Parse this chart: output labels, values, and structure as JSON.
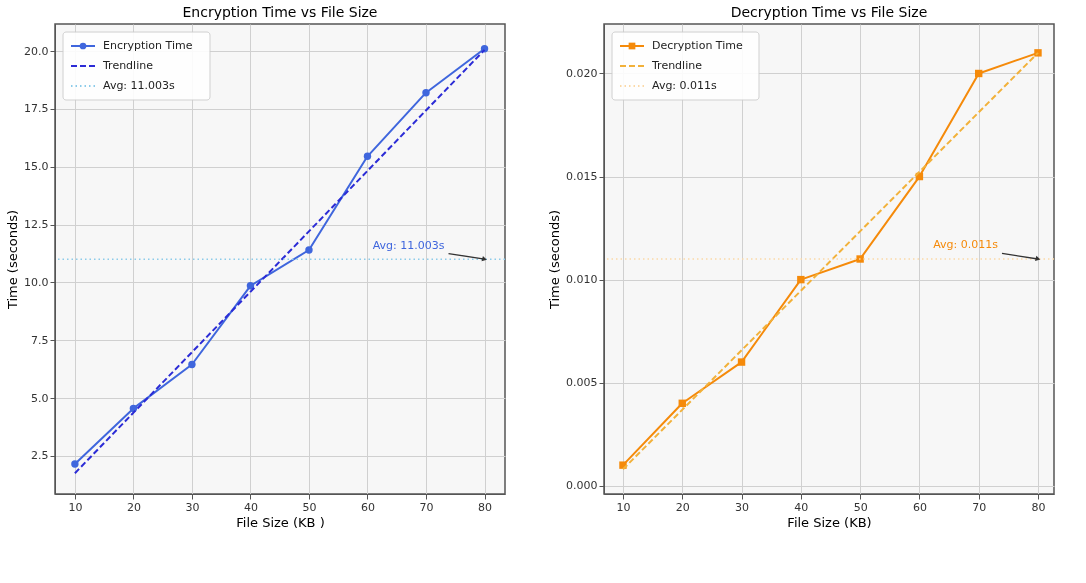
{
  "chart_data": [
    {
      "type": "line",
      "title": "Encryption Time vs File Size",
      "xlabel": "File Size (KB )",
      "ylabel": "Time (seconds)",
      "xlim": [
        6.6,
        83.5
      ],
      "ylim": [
        0.85,
        21.17
      ],
      "xticks": [
        10,
        20,
        30,
        40,
        50,
        60,
        70,
        80
      ],
      "yticks": [
        2.5,
        {
          "value": 5,
          "label": "5.0"
        },
        7.5,
        {
          "value": 10,
          "label": "10.0"
        },
        12.5,
        {
          "value": 15,
          "label": "15.0"
        },
        17.5,
        {
          "value": 20,
          "label": "20.0"
        }
      ],
      "grid": true,
      "legend": "top left",
      "series": [
        {
          "name": "Encryption Time",
          "color": "#3f66dd",
          "marker": "circle",
          "line_style": "solid",
          "x": [
            10,
            20,
            30,
            40,
            50,
            60,
            70,
            80
          ],
          "values": [
            2.15,
            4.55,
            6.45,
            9.85,
            11.4,
            15.45,
            18.2,
            20.1
          ]
        },
        {
          "name": "Trendline",
          "color": "#2b2bd6",
          "marker": "none",
          "line_style": "dashed",
          "x": [
            10,
            80
          ],
          "values": [
            1.75,
            20.05
          ]
        }
      ],
      "ref_lines": [
        {
          "axis": "y",
          "value": 11.003,
          "label": "Avg: 11.003s",
          "color": "#8ccbea",
          "line_style": "dotted"
        }
      ],
      "annotations": [
        {
          "text": "Avg: 11.003s",
          "x": 80,
          "y": 11.003
        }
      ]
    },
    {
      "type": "line",
      "title": "Decryption Time vs File Size",
      "xlabel": "File Size (KB)",
      "ylabel": "Time (seconds)",
      "xlim": [
        6.8,
        82.7
      ],
      "ylim": [
        -0.0004,
        0.0224
      ],
      "xticks": [
        10,
        20,
        30,
        40,
        50,
        60,
        70,
        80
      ],
      "yticks": [
        {
          "value": 0,
          "label": "0.000"
        },
        0.005,
        {
          "value": 0.01,
          "label": "0.010"
        },
        0.015,
        {
          "value": 0.02,
          "label": "0.020"
        }
      ],
      "grid": true,
      "legend": "top left",
      "series": [
        {
          "name": "Decryption Time",
          "color": "#f58a0a",
          "marker": "square",
          "line_style": "solid",
          "x": [
            10,
            20,
            30,
            40,
            50,
            60,
            70,
            80
          ],
          "values": [
            0.001,
            0.004,
            0.006,
            0.01,
            0.011,
            0.015,
            0.02,
            0.021
          ]
        },
        {
          "name": "Trendline",
          "color": "#f2b13a",
          "marker": "none",
          "line_style": "dashed",
          "x": [
            10,
            80
          ],
          "values": [
            0.0008,
            0.021
          ]
        }
      ],
      "ref_lines": [
        {
          "axis": "y",
          "value": 0.011,
          "label": "Avg: 0.011s",
          "color": "#fbd9a8",
          "line_style": "dotted"
        }
      ],
      "annotations": [
        {
          "text": "Avg: 0.011s",
          "x": 80,
          "y": 0.011
        }
      ]
    }
  ]
}
